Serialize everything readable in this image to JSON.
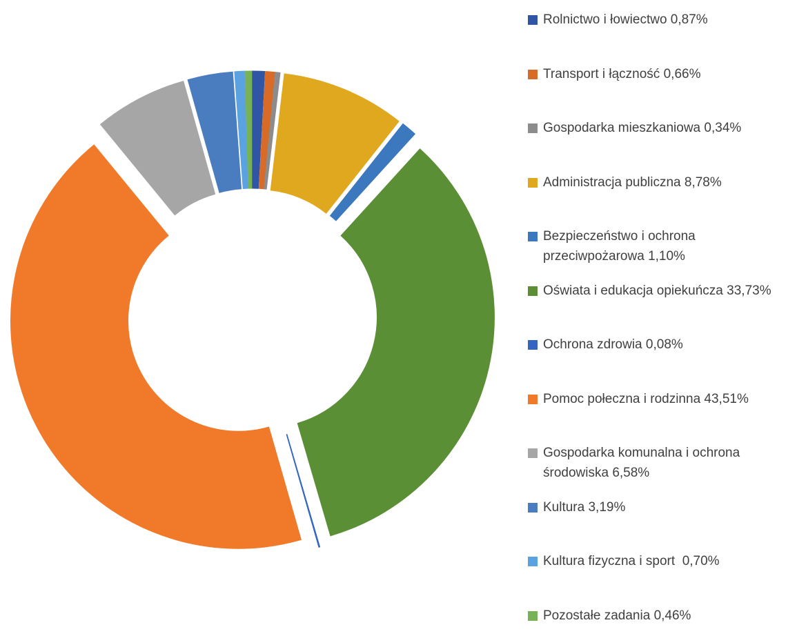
{
  "chart_data": {
    "type": "donut",
    "categories": [
      "Rolnictwo i łowiectwo",
      "Transport i łączność",
      "Gospodarka mieszkaniowa",
      "Administracja publiczna",
      "Bezpieczeństwo i ochrona przeciwpożarowa",
      "Oświata i edukacja opiekuńcza",
      "Ochrona zdrowia",
      "Pomoc połeczna i rodzinna",
      "Gospodarka komunalna i ochrona środowiska",
      "Kultura",
      "Kultura fizyczna i sport ",
      "Pozostałe zadania"
    ],
    "values": [
      0.87,
      0.66,
      0.34,
      8.78,
      1.1,
      33.73,
      0.08,
      43.51,
      6.58,
      3.19,
      0.7,
      0.46
    ],
    "value_labels": [
      "0,87%",
      "0,66%",
      "0,34%",
      "8,78%",
      "1,10%",
      "33,73%",
      "0,08%",
      "43,51%",
      "6,58%",
      "3,19%",
      "0,70%",
      "0,46%"
    ],
    "colors": [
      "#2f55a4",
      "#d86b27",
      "#8c8c8c",
      "#e0a81f",
      "#3b78bd",
      "#5b8f35",
      "#3466c1",
      "#f07a2a",
      "#a6a6a6",
      "#4a7cc0",
      "#5ba2e0",
      "#77b256"
    ],
    "legend": "right"
  }
}
